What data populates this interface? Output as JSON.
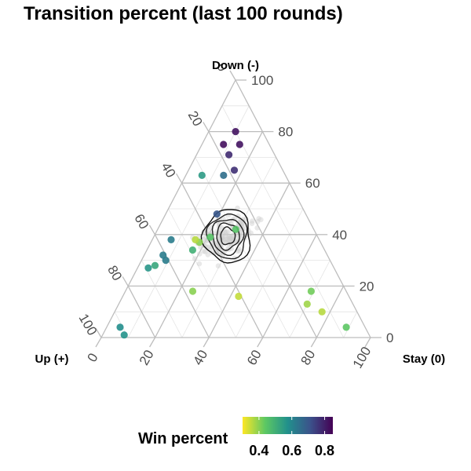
{
  "chart_data": {
    "type": "scatter",
    "subtype": "ternary",
    "title": "Transition percent (last 100 rounds)",
    "vertex_labels": {
      "top": "Down (-)",
      "left": "Up (+)",
      "right": "Stay (0)"
    },
    "axis_ticks": {
      "down": [
        "0",
        "20",
        "40",
        "60",
        "80",
        "100"
      ],
      "up": [
        "0",
        "20",
        "40",
        "60",
        "80",
        "100"
      ],
      "stay": [
        "0",
        "20",
        "40",
        "60",
        "80",
        "100"
      ]
    },
    "grid": true,
    "legend": {
      "title": "Win percent",
      "position": "bottom",
      "colors": [
        "#FDE725",
        "#5DC863",
        "#21908C",
        "#3B528B",
        "#440154"
      ],
      "range": [
        0.3,
        0.85
      ],
      "ticks": [
        "0.4",
        "0.6",
        "0.8"
      ]
    },
    "points": [
      {
        "down": 80,
        "stay": 10,
        "up": 10,
        "win": 0.82
      },
      {
        "down": 75,
        "stay": 8,
        "up": 17,
        "win": 0.83
      },
      {
        "down": 75,
        "stay": 14,
        "up": 11,
        "win": 0.82
      },
      {
        "down": 71,
        "stay": 12,
        "up": 17,
        "win": 0.78
      },
      {
        "down": 65,
        "stay": 17,
        "up": 18,
        "win": 0.77
      },
      {
        "down": 63,
        "stay": 14,
        "up": 23,
        "win": 0.65
      },
      {
        "down": 63,
        "stay": 6,
        "up": 31,
        "win": 0.55
      },
      {
        "down": 48,
        "stay": 19,
        "up": 33,
        "win": 0.7
      },
      {
        "down": 42,
        "stay": 29,
        "up": 29,
        "win": 0.45
      },
      {
        "down": 38,
        "stay": 7,
        "up": 55,
        "win": 0.62
      },
      {
        "down": 37,
        "stay": 18,
        "up": 45,
        "win": 0.4
      },
      {
        "down": 39,
        "stay": 21,
        "up": 40,
        "win": 0.45
      },
      {
        "down": 34,
        "stay": 17,
        "up": 49,
        "win": 0.5
      },
      {
        "down": 32,
        "stay": 7,
        "up": 61,
        "win": 0.62
      },
      {
        "down": 30,
        "stay": 9,
        "up": 61,
        "win": 0.62
      },
      {
        "down": 28,
        "stay": 6,
        "up": 66,
        "win": 0.52
      },
      {
        "down": 27,
        "stay": 4,
        "up": 69,
        "win": 0.56
      },
      {
        "down": 18,
        "stay": 25,
        "up": 57,
        "win": 0.4
      },
      {
        "down": 16,
        "stay": 43,
        "up": 41,
        "win": 0.35
      },
      {
        "down": 18,
        "stay": 69,
        "up": 13,
        "win": 0.42
      },
      {
        "down": 13,
        "stay": 70,
        "up": 17,
        "win": 0.38
      },
      {
        "down": 10,
        "stay": 77,
        "up": 13,
        "win": 0.36
      },
      {
        "down": 4,
        "stay": 89,
        "up": 7,
        "win": 0.44
      },
      {
        "down": 4,
        "stay": 5,
        "up": 91,
        "win": 0.58
      },
      {
        "down": 1,
        "stay": 8,
        "up": 91,
        "win": 0.57
      },
      {
        "down": 38,
        "stay": 16,
        "up": 46,
        "win": 0.36
      }
    ],
    "background_cloud": {
      "center": {
        "down": 40,
        "stay": 27,
        "up": 33
      },
      "spread": 6,
      "count": 160
    },
    "density_contours": {
      "center": {
        "down": 40,
        "stay": 27,
        "up": 33
      },
      "levels": 5
    }
  }
}
